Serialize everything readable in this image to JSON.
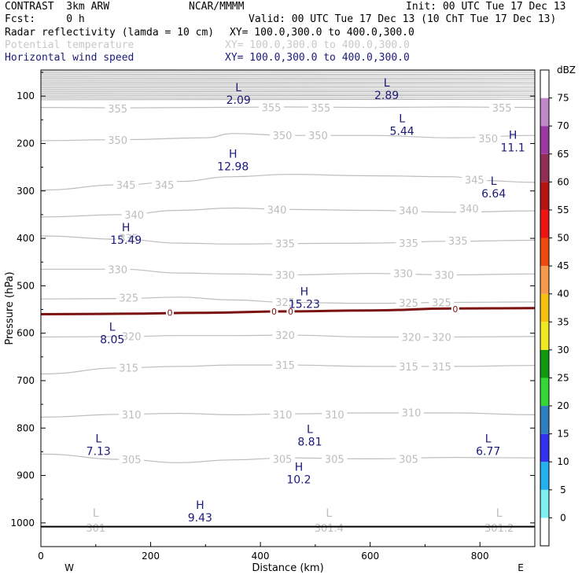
{
  "header": {
    "model": "CONTRAST  3km ARW",
    "org": "NCAR/MMMM",
    "init": "Init: 00 UTC Tue 17 Dec 13",
    "fcst": "Fcst:     0 h",
    "valid": "Valid: 00 UTC Tue 17 Dec 13 (10 ChT Tue 17 Dec 13)",
    "fields": [
      {
        "label": "Radar reflectivity (lamda = 10 cm)",
        "xy": "XY= 100.0,300.0 to 400.0,300.0"
      },
      {
        "label": "Potential temperature",
        "xy": "XY= 100.0,300.0 to 400.0,300.0"
      },
      {
        "label": "Horizontal wind speed",
        "xy": "XY= 100.0,300.0 to 400.0,300.0"
      }
    ]
  },
  "colors": {
    "theta": "#bdbdbd",
    "wind": "#1a1a7a",
    "freezing": "#7a1010",
    "frame": "#000000"
  },
  "chart_data": {
    "type": "cross-section",
    "title": "Radar reflectivity / Potential temperature / Horizontal wind speed",
    "xlabel": "Distance (km)",
    "ylabel": "Pressure (hPa)",
    "xlim": [
      0,
      900
    ],
    "ylim": [
      1050,
      45
    ],
    "xticks": [
      0,
      200,
      400,
      600,
      800
    ],
    "yticks": [
      100,
      200,
      300,
      400,
      500,
      600,
      700,
      800,
      900,
      1000
    ],
    "xdir": {
      "left": "W",
      "right": "E"
    },
    "surface_p": 1008,
    "theta_contours": [
      {
        "value": 355,
        "pts": [
          [
            0,
            124
          ],
          [
            150,
            125
          ],
          [
            300,
            124
          ],
          [
            450,
            123
          ],
          [
            600,
            124
          ],
          [
            750,
            123
          ],
          [
            900,
            124
          ]
        ],
        "labels": [
          [
            140,
            126
          ],
          [
            420,
            124
          ],
          [
            510,
            125
          ],
          [
            840,
            125
          ]
        ]
      },
      {
        "value": 350,
        "pts": [
          [
            0,
            194
          ],
          [
            150,
            192
          ],
          [
            300,
            188
          ],
          [
            350,
            179
          ],
          [
            450,
            183
          ],
          [
            600,
            183
          ],
          [
            750,
            188
          ],
          [
            900,
            183
          ]
        ],
        "labels": [
          [
            140,
            193
          ],
          [
            440,
            183
          ],
          [
            505,
            183
          ],
          [
            815,
            189
          ]
        ]
      },
      {
        "value": 345,
        "pts": [
          [
            0,
            298
          ],
          [
            150,
            287
          ],
          [
            250,
            280
          ],
          [
            350,
            270
          ],
          [
            450,
            265
          ],
          [
            600,
            268
          ],
          [
            750,
            270
          ],
          [
            800,
            278
          ],
          [
            900,
            282
          ]
        ],
        "labels": [
          [
            155,
            287
          ],
          [
            225,
            287
          ],
          [
            790,
            276
          ]
        ]
      },
      {
        "value": 340,
        "pts": [
          [
            0,
            355
          ],
          [
            150,
            350
          ],
          [
            250,
            341
          ],
          [
            350,
            336
          ],
          [
            450,
            339
          ],
          [
            600,
            341
          ],
          [
            750,
            345
          ],
          [
            900,
            342
          ]
        ],
        "labels": [
          [
            170,
            350
          ],
          [
            430,
            339
          ],
          [
            670,
            341
          ],
          [
            780,
            337
          ]
        ]
      },
      {
        "value": 335,
        "pts": [
          [
            0,
            395
          ],
          [
            150,
            402
          ],
          [
            250,
            410
          ],
          [
            350,
            412
          ],
          [
            450,
            411
          ],
          [
            600,
            410
          ],
          [
            750,
            406
          ],
          [
            900,
            404
          ]
        ],
        "labels": [
          [
            160,
            399
          ],
          [
            445,
            411
          ],
          [
            670,
            410
          ],
          [
            760,
            405
          ]
        ]
      },
      {
        "value": 330,
        "pts": [
          [
            0,
            465
          ],
          [
            150,
            465
          ],
          [
            250,
            473
          ],
          [
            350,
            475
          ],
          [
            450,
            477
          ],
          [
            600,
            474
          ],
          [
            750,
            477
          ],
          [
            900,
            475
          ]
        ],
        "labels": [
          [
            140,
            465
          ],
          [
            445,
            477
          ],
          [
            660,
            474
          ],
          [
            735,
            477
          ]
        ]
      },
      {
        "value": 325,
        "pts": [
          [
            0,
            528
          ],
          [
            150,
            527
          ],
          [
            250,
            524
          ],
          [
            350,
            530
          ],
          [
            450,
            535
          ],
          [
            600,
            537
          ],
          [
            750,
            535
          ],
          [
            900,
            534
          ]
        ],
        "labels": [
          [
            160,
            525
          ],
          [
            445,
            534
          ],
          [
            670,
            536
          ],
          [
            730,
            535
          ]
        ]
      },
      {
        "value": 320,
        "pts": [
          [
            0,
            608
          ],
          [
            150,
            607
          ],
          [
            250,
            605
          ],
          [
            350,
            605
          ],
          [
            450,
            604
          ],
          [
            600,
            608
          ],
          [
            750,
            608
          ],
          [
            900,
            607
          ]
        ],
        "labels": [
          [
            165,
            606
          ],
          [
            445,
            604
          ],
          [
            675,
            608
          ],
          [
            730,
            608
          ]
        ]
      },
      {
        "value": 315,
        "pts": [
          [
            0,
            686
          ],
          [
            150,
            673
          ],
          [
            250,
            670
          ],
          [
            350,
            667
          ],
          [
            450,
            667
          ],
          [
            600,
            670
          ],
          [
            750,
            670
          ],
          [
            900,
            668
          ]
        ],
        "labels": [
          [
            160,
            673
          ],
          [
            445,
            667
          ],
          [
            670,
            670
          ],
          [
            730,
            670
          ]
        ]
      },
      {
        "value": 310,
        "pts": [
          [
            0,
            777
          ],
          [
            150,
            771
          ],
          [
            250,
            769
          ],
          [
            350,
            772
          ],
          [
            450,
            770
          ],
          [
            600,
            768
          ],
          [
            750,
            768
          ],
          [
            900,
            772
          ]
        ],
        "labels": [
          [
            165,
            771
          ],
          [
            440,
            771
          ],
          [
            535,
            771
          ],
          [
            675,
            767
          ]
        ]
      },
      {
        "value": 305,
        "pts": [
          [
            0,
            855
          ],
          [
            150,
            866
          ],
          [
            250,
            873
          ],
          [
            350,
            867
          ],
          [
            450,
            863
          ],
          [
            600,
            865
          ],
          [
            750,
            862
          ],
          [
            900,
            863
          ]
        ],
        "labels": [
          [
            165,
            866
          ],
          [
            440,
            865
          ],
          [
            535,
            865
          ],
          [
            670,
            865
          ]
        ]
      },
      {
        "value": 301,
        "pts": [],
        "labels": [
          [
            100,
            1010
          ]
        ]
      },
      {
        "value": 301.4,
        "pts": [],
        "labels": [
          [
            525,
            1010
          ]
        ]
      },
      {
        "value": 301.2,
        "pts": [],
        "labels": [
          [
            835,
            1010
          ]
        ]
      }
    ],
    "stratosphere_theta_top": [
      45,
      105
    ],
    "freezing_level": {
      "value": 0,
      "pts": [
        [
          0,
          560
        ],
        [
          150,
          559
        ],
        [
          300,
          557
        ],
        [
          450,
          554
        ],
        [
          600,
          552
        ],
        [
          750,
          548
        ],
        [
          900,
          547
        ]
      ],
      "labels": [
        [
          235,
          557
        ],
        [
          425,
          554
        ],
        [
          455,
          554
        ],
        [
          755,
          549
        ]
      ]
    },
    "wind_extrema": [
      {
        "type": "L",
        "x": 360,
        "p": 90,
        "value": "2.09"
      },
      {
        "type": "L",
        "x": 630,
        "p": 80,
        "value": "2.89"
      },
      {
        "type": "L",
        "x": 658,
        "p": 155,
        "value": "5.44"
      },
      {
        "type": "H",
        "x": 860,
        "p": 190,
        "value": "11.1"
      },
      {
        "type": "H",
        "x": 350,
        "p": 230,
        "value": "12.98"
      },
      {
        "type": "L",
        "x": 825,
        "p": 287,
        "value": "6.64"
      },
      {
        "type": "H",
        "x": 155,
        "p": 385,
        "value": "15.49"
      },
      {
        "type": "H",
        "x": 480,
        "p": 520,
        "value": "15.23"
      },
      {
        "type": "L",
        "x": 130,
        "p": 595,
        "value": "8.05"
      },
      {
        "type": "L",
        "x": 490,
        "p": 810,
        "value": "8.81"
      },
      {
        "type": "L",
        "x": 105,
        "p": 830,
        "value": "7.13"
      },
      {
        "type": "L",
        "x": 815,
        "p": 830,
        "value": "6.77"
      },
      {
        "type": "H",
        "x": 470,
        "p": 890,
        "value": "10.2"
      },
      {
        "type": "H",
        "x": 290,
        "p": 970,
        "value": "9.43"
      }
    ],
    "surface_L": [
      {
        "type": "L",
        "x": 100,
        "p": 990,
        "value": "301"
      },
      {
        "type": "L",
        "x": 525,
        "p": 990,
        "value": "301.4"
      },
      {
        "type": "L",
        "x": 835,
        "p": 990,
        "value": "301.2"
      }
    ],
    "colorbar": {
      "unit": "dBZ",
      "levels": [
        0,
        5,
        10,
        15,
        20,
        25,
        30,
        35,
        40,
        45,
        50,
        55,
        60,
        65,
        70,
        75
      ],
      "colors": [
        "#ffffff",
        "#7ff0f0",
        "#22b0ee",
        "#3232ee",
        "#2f7fbf",
        "#33d633",
        "#119911",
        "#f0e822",
        "#f5c010",
        "#f59a4a",
        "#ee4a10",
        "#ee1414",
        "#b41414",
        "#902e56",
        "#9a3aa0",
        "#c088c8",
        "#ffffff"
      ]
    }
  }
}
